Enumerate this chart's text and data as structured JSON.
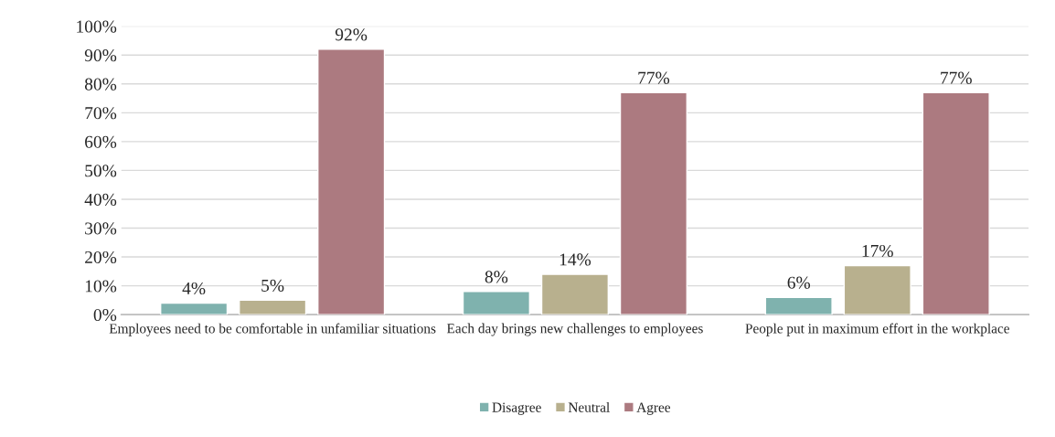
{
  "chart_data": {
    "type": "bar",
    "categories": [
      "Employees need to be comfortable in unfamiliar situations",
      "Each day brings new challenges to employees",
      "People put in maximum effort in the workplace"
    ],
    "series": [
      {
        "name": "Disagree",
        "color": "#7fb2ae",
        "values": [
          4,
          8,
          6
        ],
        "value_labels": [
          "4%",
          "8%",
          "6%"
        ]
      },
      {
        "name": "Neutral",
        "color": "#b8b08e",
        "values": [
          5,
          14,
          17
        ],
        "value_labels": [
          "5%",
          "14%",
          "17%"
        ]
      },
      {
        "name": "Agree",
        "color": "#ac7a80",
        "values": [
          92,
          77,
          77
        ],
        "value_labels": [
          "92%",
          "77%",
          "77%"
        ]
      }
    ],
    "ylim": [
      0,
      100
    ],
    "yticks": [
      {
        "value": 0,
        "label": "0%"
      },
      {
        "value": 10,
        "label": "10%"
      },
      {
        "value": 20,
        "label": "20%"
      },
      {
        "value": 30,
        "label": "30%"
      },
      {
        "value": 40,
        "label": "40%"
      },
      {
        "value": 50,
        "label": "50%"
      },
      {
        "value": 60,
        "label": "60%"
      },
      {
        "value": 70,
        "label": "70%"
      },
      {
        "value": 80,
        "label": "80%"
      },
      {
        "value": 90,
        "label": "90%"
      },
      {
        "value": 100,
        "label": "100%"
      }
    ],
    "grid": "y",
    "legend": "bottom"
  }
}
